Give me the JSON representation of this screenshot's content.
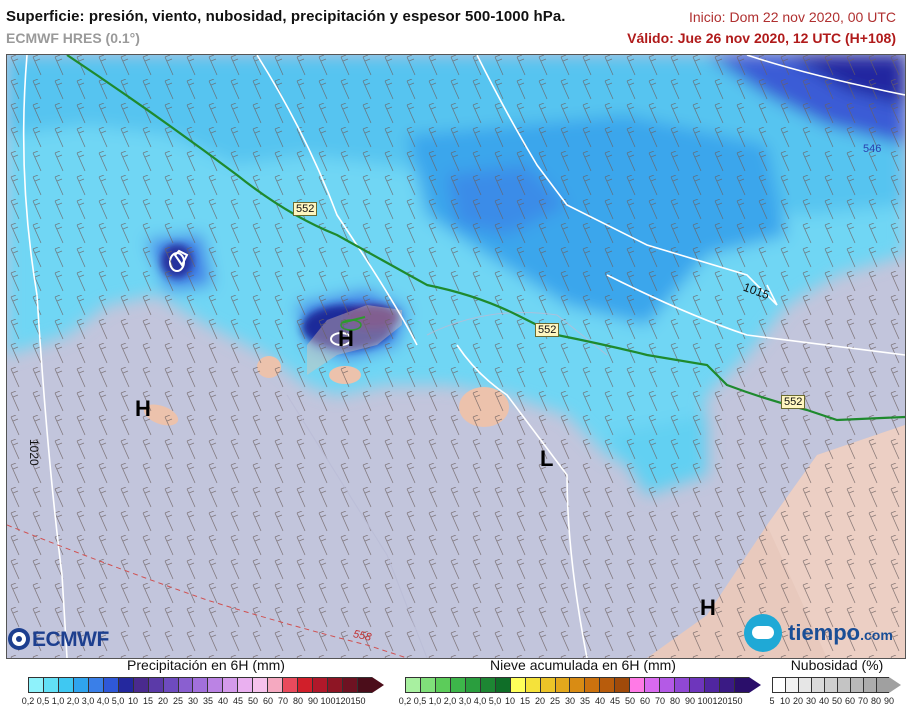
{
  "header": {
    "title": "Superficie: presión, viento, nubosidad, precipitación y espesor 500-1000 hPa.",
    "model": "ECMWF HRES (0.1°)",
    "init": "Inicio: Dom 22 nov 2020, 00 UTC",
    "valid": "Válido: Jue 26 nov 2020, 12 UTC (H+108)"
  },
  "map": {
    "pressure_centers": [
      {
        "type": "H",
        "color": "#1f2fa8"
      },
      {
        "type": "H",
        "color": "#1f2fa8"
      },
      {
        "type": "H",
        "color": "#1f2fa8"
      },
      {
        "type": "L",
        "color": "#cc1a1a"
      }
    ],
    "isobar_labels": [
      "1020",
      "1015"
    ],
    "thickness_labels": [
      "552",
      "552",
      "552",
      "546",
      "558"
    ]
  },
  "logos": {
    "ecmwf": "ECMWF",
    "tiempo_main": "tiempo",
    "tiempo_suffix": ".com"
  },
  "legend_precip": {
    "title": "Precipitación en 6H (mm)",
    "ticks": [
      "0,2",
      "0,5",
      "1,0",
      "2,0",
      "3,0",
      "4,0",
      "5,0",
      "10",
      "15",
      "20",
      "25",
      "30",
      "35",
      "40",
      "45",
      "50",
      "60",
      "70",
      "80",
      "90",
      "100",
      "120",
      "150"
    ],
    "colors": [
      "#8ef2fb",
      "#62e0f6",
      "#3fc8f2",
      "#2fa4ee",
      "#3a7fe8",
      "#2f58d8",
      "#24289e",
      "#4a2a8e",
      "#5b3aa8",
      "#6e4bbf",
      "#8a5fd0",
      "#a270db",
      "#bb83e4",
      "#d49aeb",
      "#eab0f0",
      "#f6c2ec",
      "#f5a9c0",
      "#e94a5c",
      "#d11f2a",
      "#b0182a",
      "#8e1524",
      "#6e1222",
      "#4b0d1a"
    ]
  },
  "legend_snow": {
    "title": "Nieve acumulada en 6H (mm)",
    "ticks": [
      "0,2",
      "0,5",
      "1,0",
      "2,0",
      "3,0",
      "4,0",
      "5,0",
      "10",
      "15",
      "20",
      "25",
      "30",
      "35",
      "40",
      "45",
      "50",
      "60",
      "70",
      "80",
      "90",
      "100",
      "120",
      "150"
    ],
    "colors": [
      "#a8f0a0",
      "#80e07a",
      "#5ccc5a",
      "#3db64a",
      "#2a9e3e",
      "#1d8633",
      "#0f6e28",
      "#ffff5a",
      "#f5e23a",
      "#ecc428",
      "#e3a81c",
      "#d98c14",
      "#cc720e",
      "#b85c0c",
      "#a04a0a",
      "#ff7ae6",
      "#d96af0",
      "#b45ae6",
      "#9048d4",
      "#6e36bc",
      "#5026a0",
      "#3a1a84",
      "#2a0e6a"
    ]
  },
  "legend_cloud": {
    "title": "Nubosidad (%)",
    "ticks": [
      "5",
      "10",
      "20",
      "30",
      "40",
      "50",
      "60",
      "70",
      "80",
      "90"
    ],
    "colors": [
      "#ffffff",
      "#f2f2f2",
      "#e6e6e6",
      "#dadada",
      "#cfcfcf",
      "#c4c4c4",
      "#b8b8b8",
      "#acacac",
      "#a0a0a0"
    ]
  }
}
